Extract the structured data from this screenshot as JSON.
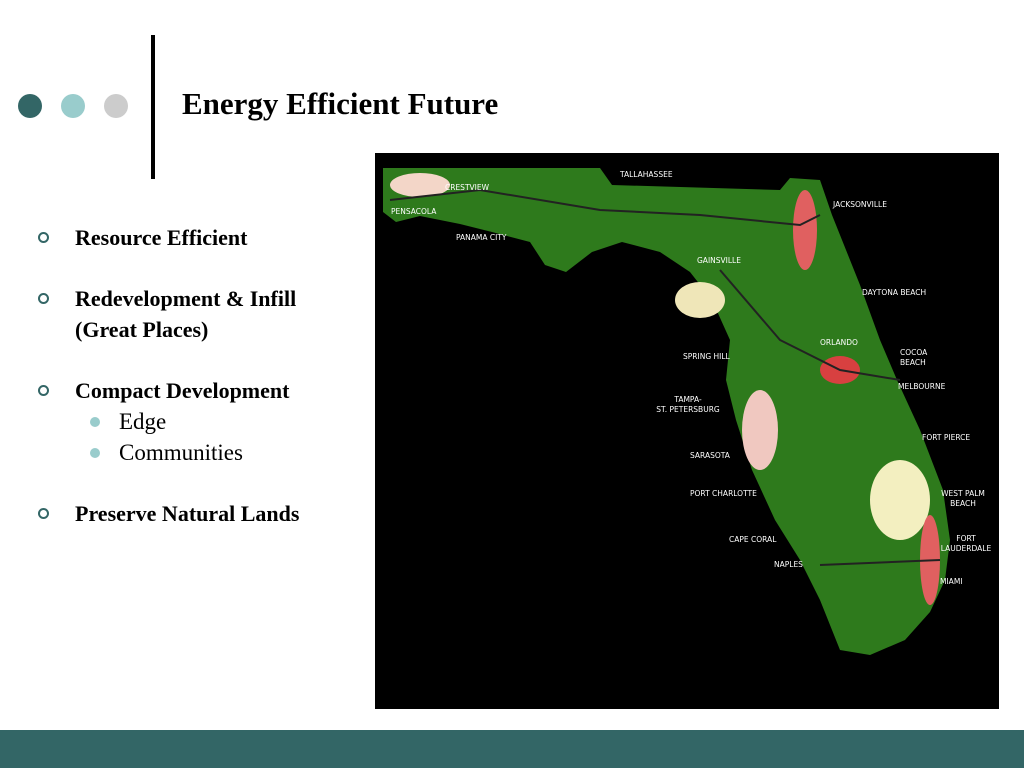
{
  "title": "Energy Efficient Future",
  "bullets": [
    {
      "lines": [
        "Resource Efficient"
      ]
    },
    {
      "lines": [
        "Redevelopment & Infill",
        "(Great Places)"
      ]
    },
    {
      "lines": [
        "Compact Development"
      ],
      "sub": [
        "Edge",
        "Communities"
      ]
    },
    {
      "lines": [
        "Preserve Natural Lands"
      ]
    }
  ],
  "map": {
    "labels": [
      {
        "lines": [
          "TALLAHASSEE"
        ]
      },
      {
        "lines": [
          "CRESTVIEW"
        ]
      },
      {
        "lines": [
          "PENSACOLA"
        ]
      },
      {
        "lines": [
          "PANAMA CITY"
        ]
      },
      {
        "lines": [
          "JACKSONVILLE"
        ]
      },
      {
        "lines": [
          "GAINSVILLE"
        ]
      },
      {
        "lines": [
          "DAYTONA BEACH"
        ]
      },
      {
        "lines": [
          "ORLANDO"
        ]
      },
      {
        "lines": [
          "COCOA",
          "BEACH"
        ]
      },
      {
        "lines": [
          "SPRING HILL"
        ]
      },
      {
        "lines": [
          "MELBOURNE"
        ]
      },
      {
        "lines": [
          "TAMPA-",
          "ST. PETERSBURG"
        ]
      },
      {
        "lines": [
          "FORT PIERCE"
        ]
      },
      {
        "lines": [
          "SARASOTA"
        ]
      },
      {
        "lines": [
          "PORT CHARLOTTE"
        ]
      },
      {
        "lines": [
          "WEST PALM",
          "BEACH"
        ]
      },
      {
        "lines": [
          "CAPE CORAL"
        ]
      },
      {
        "lines": [
          "FORT",
          "LAUDERDALE"
        ]
      },
      {
        "lines": [
          "NAPLES"
        ]
      },
      {
        "lines": [
          "MIAMI"
        ]
      }
    ]
  }
}
